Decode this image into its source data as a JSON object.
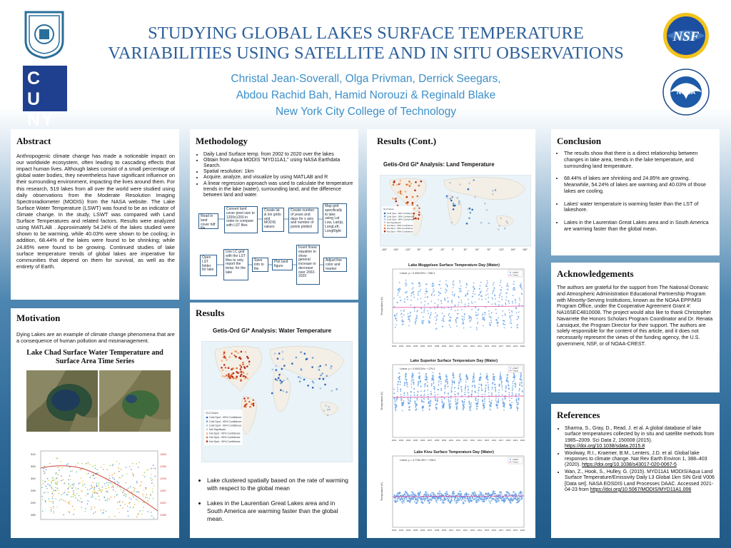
{
  "header": {
    "title_line1": "STUDYING GLOBAL LAKES SURFACE TEMPERATURE",
    "title_line2": "VARIABILITIES USING SATELLITE AND IN SITU OBSERVATIONS",
    "authors_line1": "Christal Jean-Soverall, Olga Privman, Derrick Seegars,",
    "authors_line2": "Abdou Rachid Bah, Hamid Norouzi & Reginald Blake",
    "affiliation": "New York City College of Technology",
    "logo_cuny": "CUNY",
    "logo_nsf": "NSF",
    "logo_noaa": "NOAA"
  },
  "abstract": {
    "title": "Abstract",
    "text": "Anthropogenic climate change has made a noticeable impact on our worldwide ecosystem, often leading to cascading effects that impact human lives. Although lakes consist of a small percentage of global water bodies, they nevertheless have significant influence on their surrounding environment, impacting the lives around them. For this research, 519 lakes from all over the world were studied using daily observations from the Moderate Resolution Imaging Spectroradiometer (MODIS) from the NASA website. The Lake Surface Water Temperature (LSWT) was found to be an indicator of climate change. In the study, LSWT was compared with Land Surface Temperatures and related factors. Results were analyzed using MATLAB . Approximately 54.24% of the lakes studied were shown to be warming, while 40.03% were shown to be cooling; in addition, 68.44% of the lakes were found to be shrinking; while 24.85% were found to be growing. Continued studies of lake surface temperature trends of global lakes are imperative for communities that depend on them for survival, as well as the entirety of Earth."
  },
  "motivation": {
    "title": "Motivation",
    "text": "Dying Lakes are an example of climate change phenomena that are a consequence of human pollution and mismanagement.",
    "figure_title": "Lake Chad Surface Water Temperature and Surface Area Time Series"
  },
  "methodology": {
    "title": "Methodology",
    "bullets": [
      "Daily Land Surface temp. from 2002 to 2020 over the lakes",
      "Obtain from Aqua MODIS \"MYD11A1,\" using NASA Earthdata Search.",
      "Spatial resolution: 1km",
      "Acquire, analyze, and visualize by using MATLAB and R",
      "A linear regression approach was used to calculate the temperature trends in the lake (water), surrounding land, and the difference between land and water."
    ],
    "flow": [
      "Read in land cover hdf file",
      "Convert land cover pixel size to 1200x1200 in order to compare with LST files",
      "Create lat & lon grids and MODIS values",
      "Create number of years and days for x axis and number of points plotted",
      "Map grid specifically to lake using Lat Low, LatUp, LongLeft, LongRight",
      "Open LST folder for lake",
      "Use LC grid with the LST files to only report the temp. for the lake",
      "Save info to file",
      "Plot land figure",
      "Insert linear equation to show general increase or decrease over 2002-2020",
      "Adjust line color and marker"
    ]
  },
  "results": {
    "title": "Results",
    "map_title": "Getis-Ord Gi* Analysis: Water Temperature",
    "bullets": [
      "Lake clustered spatially based on the rate of warming with respect to the global mean",
      "Lakes in the Laurentian Great Lakes area and in South America are warming faster than the global mean."
    ],
    "legend": {
      "title": "GI-Z Score",
      "items": [
        "Cold Spot - 99% Confidence",
        "Cold Spot - 95% Confidence",
        "Cold Spot - 90% Confidence",
        "Not Significant",
        "Hot Spot - 90% Confidence",
        "Hot Spot - 95% Confidence",
        "Hot Spot - 99% Confidence"
      ]
    }
  },
  "results_cont": {
    "title": "Results (Cont.)",
    "map_title": "Getis-Ord Gi* Analysis: Land Temperature",
    "chart1_title": "Lake Muggelsee Surface Temperature Day (Water)",
    "chart1_eq": "Linear: y = 0.000103*x + 286.3",
    "chart2_title": "Lake Superior Surface Temperature Day (Water)",
    "chart2_eq": "Linear: y = 0.000134*x + 279.4",
    "chart3_title": "Lake Kivu Surface Temperature Day (Water)",
    "chart3_eq": "Linear: y = 4.776e-05*x + 298.0",
    "legend_a": "LSWT",
    "legend_b": "Trend",
    "ylabel": "Temperature (K)",
    "years": [
      "2002",
      "2003",
      "2004",
      "2005",
      "2006",
      "2007",
      "2008",
      "2009",
      "2010",
      "2011",
      "2012",
      "2013",
      "2014",
      "2015",
      "2016",
      "2017",
      "2018",
      "2019",
      "2020"
    ]
  },
  "conclusion": {
    "title": "Conclusion",
    "bullets": [
      "The results show that there is a direct relationship between changes in lake area, trends in the lake temperature, and surrounding land temperature.",
      "68.44% of lakes are shrinking and 24.85% are growing. Meanwhile, 54.24% of lakes are warming and 40.03% of those lakes are cooling.",
      "Lakes' water temperature is warming faster than the LST of lakeshore.",
      "Lakes in the Laurentian Great Lakes area and in South America are warming faster than the global mean."
    ]
  },
  "acknowledgements": {
    "title": "Acknowledgements",
    "text": "The authors are grateful for the support from The National Oceanic and Atmospheric Administration Educational Partnership Program with Minority-Serving Institutions, known as the NOAA EPP/MSI Program Office, under the Cooperative Agreement Grant #: NA16SEC4810008. The project would also like to thank Christopher Navarrete the Honors Scholars Program Coordinator and Dr. Renata Lansiquot, the Program Director for their support. The authors are solely responsible for the content of this article, and it does not necessarily represent the views of the funding agency, the U.S. government, NSF, or of NOAA-CREST."
  },
  "references": {
    "title": "References",
    "items": [
      {
        "text": "Sharma, S., Gray, D., Read, J. et al. A global database of lake surface temperatures collected by in situ and satellite methods from 1985–2009. Sci Data 2, 150008 (2015). ",
        "link": "https://doi.org/10.1038/sdata.2015.8"
      },
      {
        "text": "Woolway, R.I., Kraemer, B.M., Lenters, J.D. et al. Global lake responses to climate change. Nat Rev Earth Environ 1, 388–403 (2020). ",
        "link": "https://doi.org/10.1038/s43017-020-0067-5"
      },
      {
        "text": "Wan, Z., Hook, S., Hulley, G. (2015). MYD11A1 MODIS/Aqua Land Surface Temperature/Emissivity Daily L3 Global 1km SIN Grid V006 [Data set]. NASA EOSDIS Land Processes DAAC. Accessed 2021-04-23 from ",
        "link": "https://doi.org/10.5067/MODIS/MYD11A1.006"
      }
    ]
  }
}
